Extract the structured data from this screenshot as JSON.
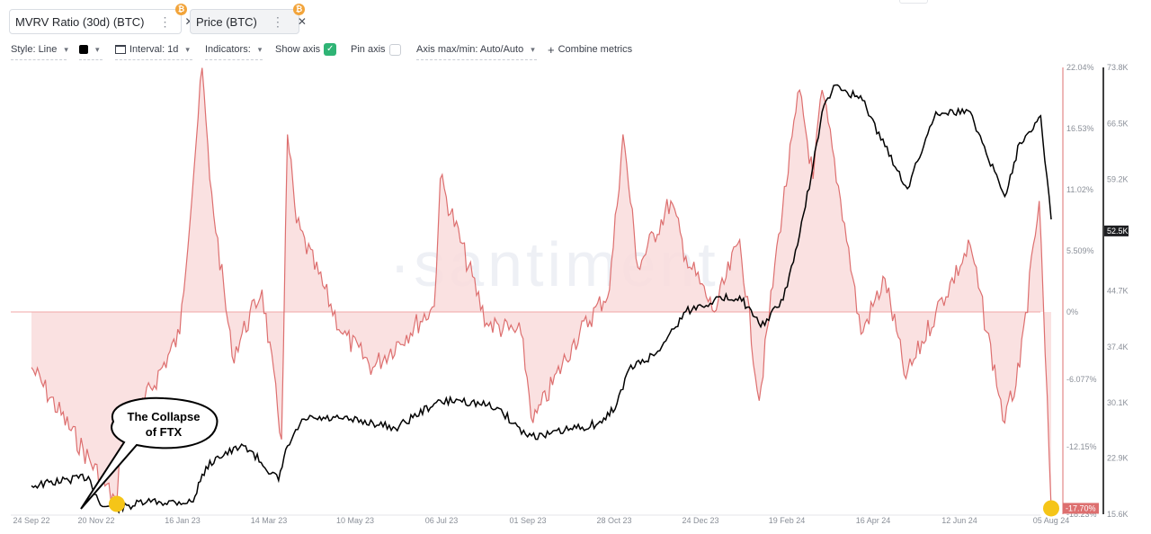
{
  "tabs": [
    {
      "label": "MVRV Ratio (30d) (BTC)",
      "accent": "#dd6f6f",
      "menu": "⋮",
      "close": "✕",
      "badge": "₿"
    },
    {
      "label": "Price (BTC)",
      "accent": "#000000",
      "menu": "⋮",
      "close": "✕",
      "badge": "₿"
    }
  ],
  "toolbar": {
    "style": "Style: Line",
    "interval": "Interval: 1d",
    "indicators": "Indicators:",
    "show_axis": "Show axis",
    "show_axis_checked": true,
    "pin_axis": "Pin axis",
    "pin_axis_checked": false,
    "axis_maxmin": "Axis max/min: Auto/Auto",
    "combine": "Combine metrics",
    "combine_icon": "+",
    "check_glyph": "✓",
    "color_swatch": "#000000"
  },
  "watermark": "·santiment·",
  "callout": {
    "line1": "The Collapse",
    "line2": "of FTX"
  },
  "chart_data": {
    "type": "line",
    "x_ticks": [
      "24 Sep 22",
      "20 Nov 22",
      "16 Jan 23",
      "14 Mar 23",
      "10 May 23",
      "06 Jul 23",
      "01 Sep 23",
      "28 Oct 23",
      "24 Dec 23",
      "19 Feb 24",
      "16 Apr 24",
      "12 Jun 24",
      "05 Aug 24"
    ],
    "mvrv_axis_ticks": [
      "22.04%",
      "16.53%",
      "11.02%",
      "5.509%",
      "0%",
      "-6.077%",
      "-12.15%",
      "-18.23%"
    ],
    "price_axis_ticks": [
      "73.8K",
      "66.5K",
      "59.2K",
      "52.5K",
      "44.7K",
      "37.4K",
      "30.1K",
      "22.9K",
      "15.6K"
    ],
    "ylim_mvrv_percent": [
      -18.23,
      22.04
    ],
    "ylim_price_k": [
      15.6,
      73.8
    ],
    "series": [
      {
        "name": "MVRV Ratio (30d) (BTC)",
        "color": "#dd6f6f",
        "fill": "#f9dcdc",
        "x": [
          "24 Sep 22",
          "20 Nov 22",
          "23 Nov 22",
          "01 Jan 23",
          "16 Jan 23",
          "21 Jan 23",
          "05 Feb 23",
          "25 Feb 23",
          "10 Mar 23",
          "14 Mar 23",
          "20 Mar 23",
          "20 Apr 23",
          "10 May 23",
          "20 Jun 23",
          "24 Jun 23",
          "25 Jul 23",
          "17 Aug 23",
          "25 Aug 23",
          "20 Sep 23",
          "15 Oct 23",
          "24 Oct 23",
          "03 Nov 23",
          "25 Nov 23",
          "05 Dec 23",
          "24 Dec 23",
          "10 Jan 24",
          "23 Jan 24",
          "05 Feb 24",
          "19 Feb 24",
          "28 Feb 24",
          "05 Mar 24",
          "20 Mar 24",
          "31 Mar 24",
          "16 Apr 24",
          "30 Apr 24",
          "20 May 24",
          "12 Jun 24",
          "05 Jul 24",
          "15 Jul 24",
          "28 Jul 24",
          "05 Aug 24"
        ],
        "values": [
          -5.0,
          -17.3,
          -12.0,
          -2.0,
          22.0,
          12.0,
          -4.0,
          2.0,
          -11.5,
          16.0,
          8.0,
          -2.0,
          -5.0,
          0.5,
          12.0,
          -1.0,
          -2.0,
          -10.0,
          -3.0,
          2.0,
          16.0,
          4.0,
          10.0,
          5.0,
          0.0,
          6.5,
          -8.0,
          7.0,
          20.0,
          12.0,
          20.0,
          8.0,
          -2.0,
          3.0,
          -6.0,
          0.0,
          6.0,
          -10.0,
          -5.0,
          10.0,
          -17.7
        ]
      },
      {
        "name": "Price (BTC)",
        "color": "#000000",
        "x": [
          "24 Sep 22",
          "01 Nov 22",
          "09 Nov 22",
          "20 Nov 22",
          "10 Dec 22",
          "10 Jan 23",
          "16 Jan 23",
          "25 Jan 23",
          "14 Feb 23",
          "08 Mar 23",
          "14 Mar 23",
          "25 Mar 23",
          "20 Apr 23",
          "10 May 23",
          "25 May 23",
          "20 Jun 23",
          "06 Jul 23",
          "01 Aug 23",
          "20 Aug 23",
          "01 Sep 23",
          "15 Sep 23",
          "10 Oct 23",
          "20 Oct 23",
          "28 Oct 23",
          "15 Nov 23",
          "05 Dec 23",
          "24 Dec 23",
          "10 Jan 24",
          "24 Jan 24",
          "08 Feb 24",
          "19 Feb 24",
          "28 Feb 24",
          "05 Mar 24",
          "14 Mar 24",
          "01 Apr 24",
          "16 Apr 24",
          "01 May 24",
          "20 May 24",
          "12 Jun 24",
          "20 Jun 24",
          "05 Jul 24",
          "15 Jul 24",
          "29 Jul 24",
          "05 Aug 24"
        ],
        "values_k": [
          19.3,
          20.5,
          16.8,
          16.3,
          17.2,
          17.2,
          20.8,
          23.0,
          24.5,
          20.0,
          24.5,
          28.0,
          28.0,
          27.5,
          26.8,
          30.0,
          30.5,
          29.5,
          26.0,
          25.8,
          26.5,
          27.5,
          30.0,
          34.5,
          36.5,
          42.0,
          43.5,
          44.0,
          40.0,
          43.5,
          52.0,
          61.0,
          68.0,
          71.5,
          69.5,
          63.5,
          58.0,
          68.0,
          68.0,
          64.0,
          57.0,
          64.0,
          67.5,
          54.0
        ]
      }
    ]
  }
}
